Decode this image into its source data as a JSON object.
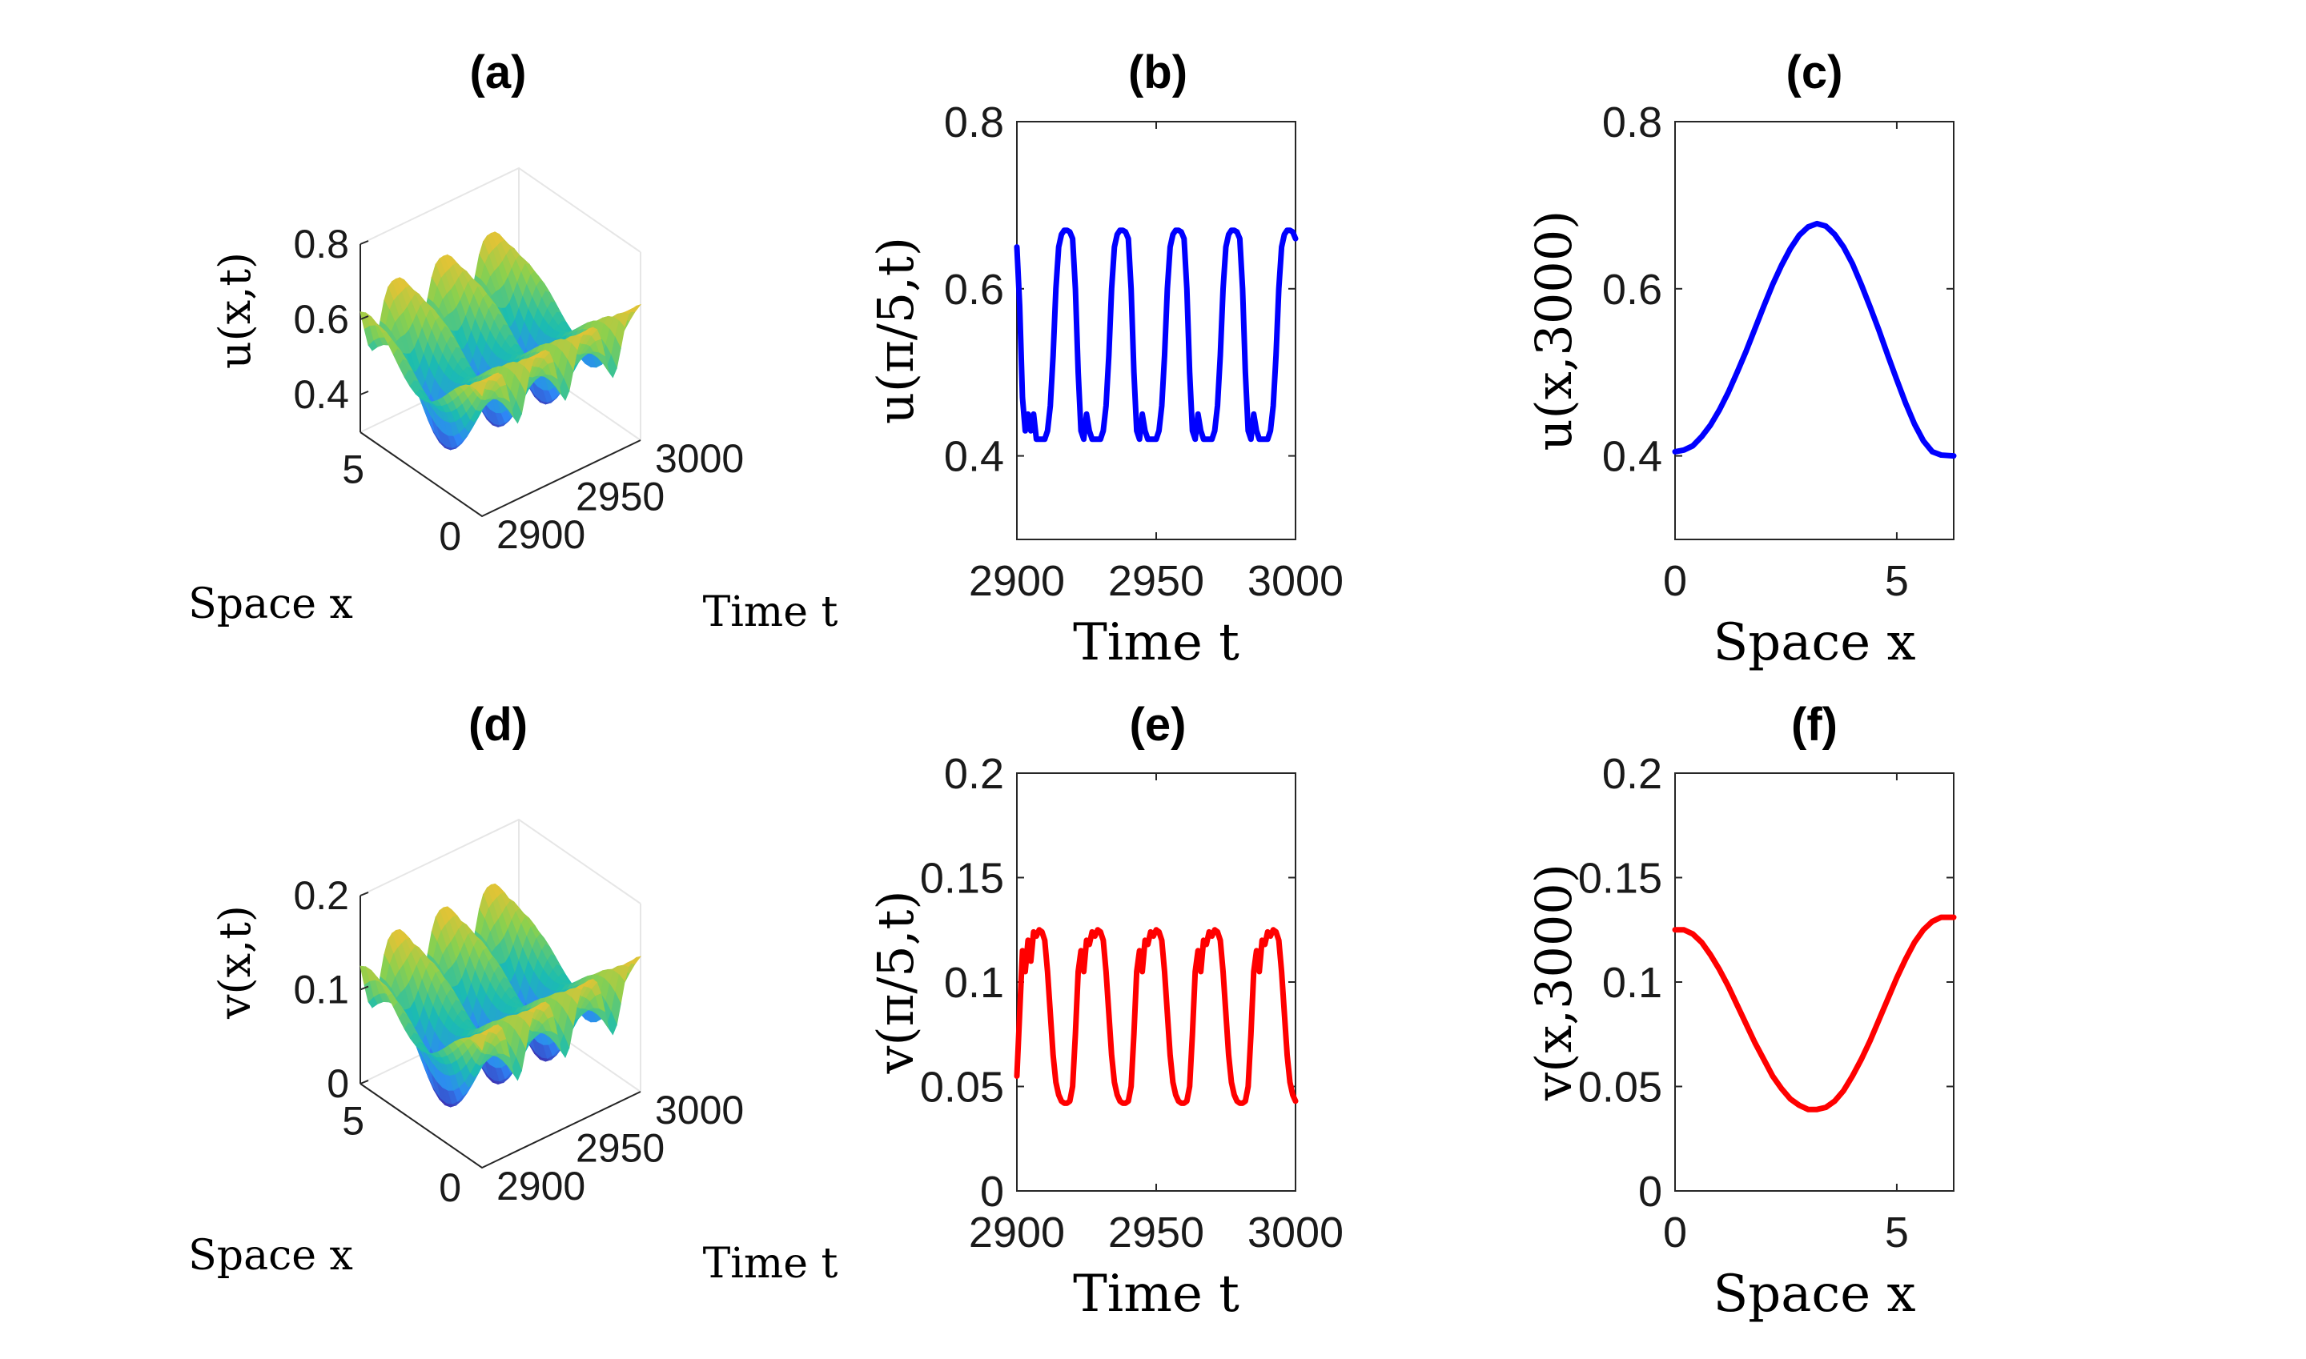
{
  "chart_data": [
    {
      "id": "a",
      "type": "surface",
      "title": "(a)",
      "zlabel": "u(x,t)",
      "xlabel": "Space x",
      "ylabel": "Time t",
      "xlim": [
        0,
        6.2832
      ],
      "tlim": [
        2900,
        3000
      ],
      "zlim": [
        0.3,
        0.8
      ],
      "z_ticks": [
        "0.4",
        "0.6",
        "0.8"
      ],
      "x_ticks": [
        "0",
        "5"
      ],
      "t_ticks": [
        "2900",
        "2950",
        "3000"
      ],
      "colormap": [
        "#3e26a8",
        "#2e87f7",
        "#1bbdb0",
        "#8bd04e",
        "#f9c02f",
        "#f9fb0e"
      ],
      "wave": {
        "base": 0.52,
        "amp_x": 0.1,
        "amp_t": 0.08,
        "period_t": 30
      }
    },
    {
      "id": "b",
      "type": "line",
      "title": "(b)",
      "xlabel": "Time t",
      "ylabel": "u(π/5,t)",
      "xlim": [
        2900,
        3000
      ],
      "ylim": [
        0.3,
        0.8
      ],
      "x_ticks": [
        "2900",
        "2950",
        "3000"
      ],
      "y_ticks": [
        "0.4",
        "0.6",
        "0.8"
      ],
      "color": "#0000ff",
      "x": [
        2900,
        2901,
        2902,
        2903,
        2904,
        2905,
        2906,
        2907,
        2908,
        2909,
        2910,
        2911,
        2912,
        2913,
        2914,
        2915,
        2916,
        2917,
        2918,
        2919,
        2920,
        2921,
        2922,
        2923,
        2924,
        2925,
        2926,
        2927,
        2928,
        2929,
        2930,
        2931,
        2932,
        2933,
        2934,
        2935,
        2936,
        2937,
        2938,
        2939,
        2940,
        2941,
        2942,
        2943,
        2944,
        2945,
        2946,
        2947,
        2948,
        2949,
        2950,
        2951,
        2952,
        2953,
        2954,
        2955,
        2956,
        2957,
        2958,
        2959,
        2960,
        2961,
        2962,
        2963,
        2964,
        2965,
        2966,
        2967,
        2968,
        2969,
        2970,
        2971,
        2972,
        2973,
        2974,
        2975,
        2976,
        2977,
        2978,
        2979,
        2980,
        2981,
        2982,
        2983,
        2984,
        2985,
        2986,
        2987,
        2988,
        2989,
        2990,
        2991,
        2992,
        2993,
        2994,
        2995,
        2996,
        2997,
        2998,
        2999,
        3000
      ],
      "y": [
        0.65,
        0.58,
        0.47,
        0.43,
        0.45,
        0.43,
        0.45,
        0.42,
        0.42,
        0.42,
        0.42,
        0.43,
        0.46,
        0.52,
        0.6,
        0.65,
        0.665,
        0.67,
        0.67,
        0.668,
        0.66,
        0.6,
        0.5,
        0.43,
        0.42,
        0.45,
        0.43,
        0.42,
        0.42,
        0.42,
        0.42,
        0.43,
        0.46,
        0.52,
        0.6,
        0.65,
        0.665,
        0.67,
        0.67,
        0.668,
        0.66,
        0.6,
        0.5,
        0.43,
        0.42,
        0.45,
        0.43,
        0.42,
        0.42,
        0.42,
        0.42,
        0.43,
        0.46,
        0.52,
        0.6,
        0.65,
        0.665,
        0.67,
        0.67,
        0.668,
        0.66,
        0.6,
        0.5,
        0.43,
        0.42,
        0.45,
        0.43,
        0.42,
        0.42,
        0.42,
        0.42,
        0.43,
        0.46,
        0.52,
        0.6,
        0.65,
        0.665,
        0.67,
        0.67,
        0.668,
        0.66,
        0.6,
        0.5,
        0.43,
        0.42,
        0.45,
        0.43,
        0.42,
        0.42,
        0.42,
        0.42,
        0.43,
        0.46,
        0.52,
        0.6,
        0.65,
        0.665,
        0.67,
        0.67,
        0.668,
        0.66
      ]
    },
    {
      "id": "c",
      "type": "line",
      "title": "(c)",
      "xlabel": "Space x",
      "ylabel": "u(x,3000)",
      "xlim": [
        0,
        6.2832
      ],
      "ylim": [
        0.3,
        0.8
      ],
      "x_ticks": [
        "0",
        "5"
      ],
      "y_ticks": [
        "0.4",
        "0.6",
        "0.8"
      ],
      "color": "#0000ff",
      "x": [
        0,
        0.2,
        0.4,
        0.6,
        0.8,
        1.0,
        1.2,
        1.4,
        1.6,
        1.8,
        2.0,
        2.2,
        2.4,
        2.6,
        2.8,
        3.0,
        3.2,
        3.4,
        3.6,
        3.8,
        4.0,
        4.2,
        4.4,
        4.6,
        4.8,
        5.0,
        5.2,
        5.4,
        5.6,
        5.8,
        6.0,
        6.2832
      ],
      "y": [
        0.405,
        0.407,
        0.412,
        0.423,
        0.437,
        0.455,
        0.476,
        0.5,
        0.525,
        0.552,
        0.579,
        0.605,
        0.628,
        0.648,
        0.664,
        0.674,
        0.678,
        0.675,
        0.665,
        0.65,
        0.63,
        0.605,
        0.578,
        0.55,
        0.52,
        0.491,
        0.463,
        0.438,
        0.418,
        0.405,
        0.401,
        0.4
      ]
    },
    {
      "id": "d",
      "type": "surface",
      "title": "(d)",
      "zlabel": "v(x,t)",
      "xlabel": "Space x",
      "ylabel": "Time t",
      "xlim": [
        0,
        6.2832
      ],
      "tlim": [
        2900,
        3000
      ],
      "zlim": [
        0,
        0.2
      ],
      "z_ticks": [
        "0",
        "0.1",
        "0.2"
      ],
      "x_ticks": [
        "0",
        "5"
      ],
      "t_ticks": [
        "2900",
        "2950",
        "3000"
      ],
      "colormap": [
        "#3e26a8",
        "#2e87f7",
        "#1bbdb0",
        "#8bd04e",
        "#f9c02f",
        "#f9fb0e"
      ],
      "wave": {
        "base": 0.085,
        "amp_x": 0.04,
        "amp_t": 0.035,
        "period_t": 30
      }
    },
    {
      "id": "e",
      "type": "line",
      "title": "(e)",
      "xlabel": "Time t",
      "ylabel": "v(π/5,t)",
      "xlim": [
        2900,
        3000
      ],
      "ylim": [
        0,
        0.2
      ],
      "x_ticks": [
        "2900",
        "2950",
        "3000"
      ],
      "y_ticks": [
        "0",
        "0.05",
        "0.1",
        "0.15",
        "0.2"
      ],
      "color": "#ff0000",
      "x": [
        2900,
        2901,
        2902,
        2903,
        2904,
        2905,
        2906,
        2907,
        2908,
        2909,
        2910,
        2911,
        2912,
        2913,
        2914,
        2915,
        2916,
        2917,
        2918,
        2919,
        2920,
        2921,
        2922,
        2923,
        2924,
        2925,
        2926,
        2927,
        2928,
        2929,
        2930,
        2931,
        2932,
        2933,
        2934,
        2935,
        2936,
        2937,
        2938,
        2939,
        2940,
        2941,
        2942,
        2943,
        2944,
        2945,
        2946,
        2947,
        2948,
        2949,
        2950,
        2951,
        2952,
        2953,
        2954,
        2955,
        2956,
        2957,
        2958,
        2959,
        2960,
        2961,
        2962,
        2963,
        2964,
        2965,
        2966,
        2967,
        2968,
        2969,
        2970,
        2971,
        2972,
        2973,
        2974,
        2975,
        2976,
        2977,
        2978,
        2979,
        2980,
        2981,
        2982,
        2983,
        2984,
        2985,
        2986,
        2987,
        2988,
        2989,
        2990,
        2991,
        2992,
        2993,
        2994,
        2995,
        2996,
        2997,
        2998,
        2999,
        3000
      ],
      "y": [
        0.055,
        0.085,
        0.115,
        0.105,
        0.12,
        0.11,
        0.124,
        0.122,
        0.125,
        0.124,
        0.12,
        0.105,
        0.085,
        0.065,
        0.052,
        0.046,
        0.043,
        0.042,
        0.042,
        0.043,
        0.05,
        0.075,
        0.105,
        0.115,
        0.105,
        0.12,
        0.118,
        0.124,
        0.122,
        0.125,
        0.124,
        0.12,
        0.105,
        0.085,
        0.065,
        0.052,
        0.046,
        0.043,
        0.042,
        0.042,
        0.043,
        0.05,
        0.075,
        0.105,
        0.115,
        0.105,
        0.12,
        0.118,
        0.124,
        0.122,
        0.125,
        0.124,
        0.12,
        0.105,
        0.085,
        0.065,
        0.052,
        0.046,
        0.043,
        0.042,
        0.042,
        0.043,
        0.05,
        0.075,
        0.105,
        0.115,
        0.105,
        0.12,
        0.118,
        0.124,
        0.122,
        0.125,
        0.124,
        0.12,
        0.105,
        0.085,
        0.065,
        0.052,
        0.046,
        0.043,
        0.042,
        0.042,
        0.043,
        0.05,
        0.075,
        0.105,
        0.115,
        0.105,
        0.12,
        0.118,
        0.124,
        0.122,
        0.125,
        0.124,
        0.12,
        0.105,
        0.085,
        0.065,
        0.052,
        0.046,
        0.043
      ]
    },
    {
      "id": "f",
      "type": "line",
      "title": "(f)",
      "xlabel": "Space x",
      "ylabel": "v(x,3000)",
      "xlim": [
        0,
        6.2832
      ],
      "ylim": [
        0,
        0.2
      ],
      "x_ticks": [
        "0",
        "5"
      ],
      "y_ticks": [
        "0",
        "0.05",
        "0.1",
        "0.15",
        "0.2"
      ],
      "color": "#ff0000",
      "x": [
        0,
        0.2,
        0.4,
        0.6,
        0.8,
        1.0,
        1.2,
        1.4,
        1.6,
        1.8,
        2.0,
        2.2,
        2.4,
        2.6,
        2.8,
        3.0,
        3.2,
        3.4,
        3.6,
        3.8,
        4.0,
        4.2,
        4.4,
        4.6,
        4.8,
        5.0,
        5.2,
        5.4,
        5.6,
        5.8,
        6.0,
        6.2832
      ],
      "y": [
        0.125,
        0.125,
        0.123,
        0.119,
        0.113,
        0.106,
        0.098,
        0.089,
        0.08,
        0.071,
        0.063,
        0.055,
        0.049,
        0.044,
        0.041,
        0.039,
        0.039,
        0.04,
        0.043,
        0.048,
        0.055,
        0.063,
        0.072,
        0.082,
        0.092,
        0.102,
        0.111,
        0.119,
        0.125,
        0.129,
        0.131,
        0.131
      ]
    }
  ]
}
